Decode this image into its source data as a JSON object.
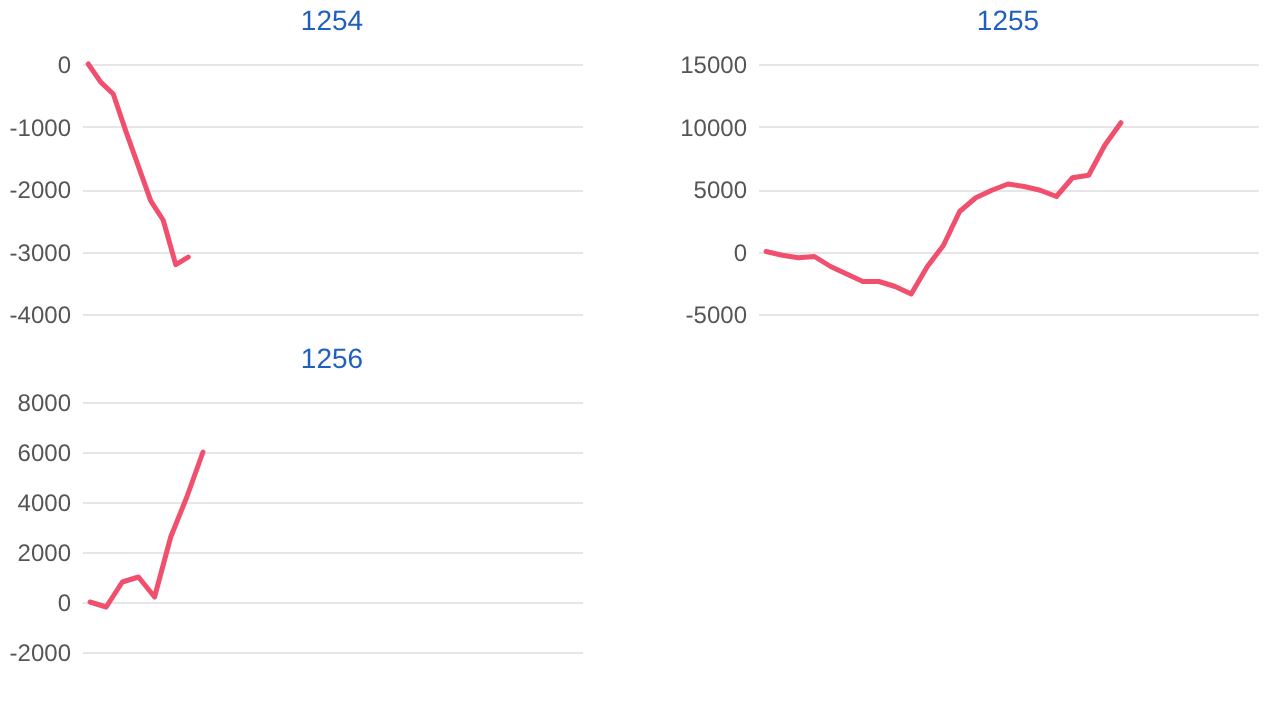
{
  "chart_data": [
    {
      "type": "line",
      "title": "1254",
      "categories": [
        null,
        null,
        null,
        null,
        null,
        null,
        null,
        null,
        null,
        null,
        null,
        null,
        null,
        null,
        null,
        null,
        null,
        null,
        null,
        null,
        null,
        null,
        null,
        null,
        null,
        null,
        null,
        null,
        null,
        null,
        null,
        null,
        null,
        null,
        null,
        null,
        null,
        null,
        null,
        null
      ],
      "series": [
        {
          "color": "#f0506e",
          "values": [
            0,
            -290,
            -480,
            -1070,
            -1630,
            -2190,
            -2500,
            -3210,
            -3090,
            null,
            null,
            null,
            null,
            null,
            null,
            null,
            null,
            null,
            null,
            null,
            null,
            null,
            null,
            null,
            null,
            null,
            null,
            null,
            null,
            null,
            null,
            null,
            null,
            null,
            null,
            null,
            null,
            null,
            null,
            null
          ]
        }
      ],
      "ylim": [
        -4000,
        0
      ],
      "yticks": [
        -4000,
        -3000,
        -2000,
        -1000,
        0
      ],
      "grid": "y",
      "tick_labels": "y"
    },
    {
      "type": "line",
      "title": "1255",
      "categories": [
        null,
        null,
        null,
        null,
        null,
        null,
        null,
        null,
        null,
        null,
        null,
        null,
        null,
        null,
        null,
        null,
        null,
        null,
        null,
        null,
        null,
        null,
        null,
        null,
        null,
        null,
        null,
        null,
        null,
        null,
        null
      ],
      "series": [
        {
          "color": "#f0506e",
          "values": [
            0,
            -300,
            -500,
            -400,
            -1200,
            -1800,
            -2400,
            -2400,
            -2800,
            -3400,
            -1200,
            500,
            3200,
            4300,
            4900,
            5400,
            5200,
            4900,
            4400,
            5900,
            6100,
            8500,
            10300,
            null,
            null,
            null,
            null,
            null,
            null,
            null,
            null
          ]
        }
      ],
      "ylim": [
        -5000,
        15000
      ],
      "yticks": [
        -5000,
        0,
        5000,
        10000,
        15000
      ],
      "grid": "y",
      "tick_labels": "y"
    },
    {
      "type": "line",
      "title": "1256",
      "categories": [
        null,
        null,
        null,
        null,
        null,
        null,
        null,
        null,
        null,
        null,
        null,
        null,
        null,
        null,
        null,
        null,
        null,
        null,
        null,
        null,
        null,
        null,
        null,
        null,
        null,
        null,
        null,
        null,
        null,
        null,
        null
      ],
      "series": [
        {
          "color": "#f0506e",
          "values": [
            0,
            -200,
            800,
            1000,
            200,
            2600,
            4200,
            6000,
            null,
            null,
            null,
            null,
            null,
            null,
            null,
            null,
            null,
            null,
            null,
            null,
            null,
            null,
            null,
            null,
            null,
            null,
            null,
            null,
            null,
            null,
            null
          ]
        }
      ],
      "ylim": [
        -2000,
        8000
      ],
      "yticks": [
        -2000,
        0,
        2000,
        4000,
        6000,
        8000
      ],
      "grid": "y",
      "tick_labels": "y"
    }
  ]
}
